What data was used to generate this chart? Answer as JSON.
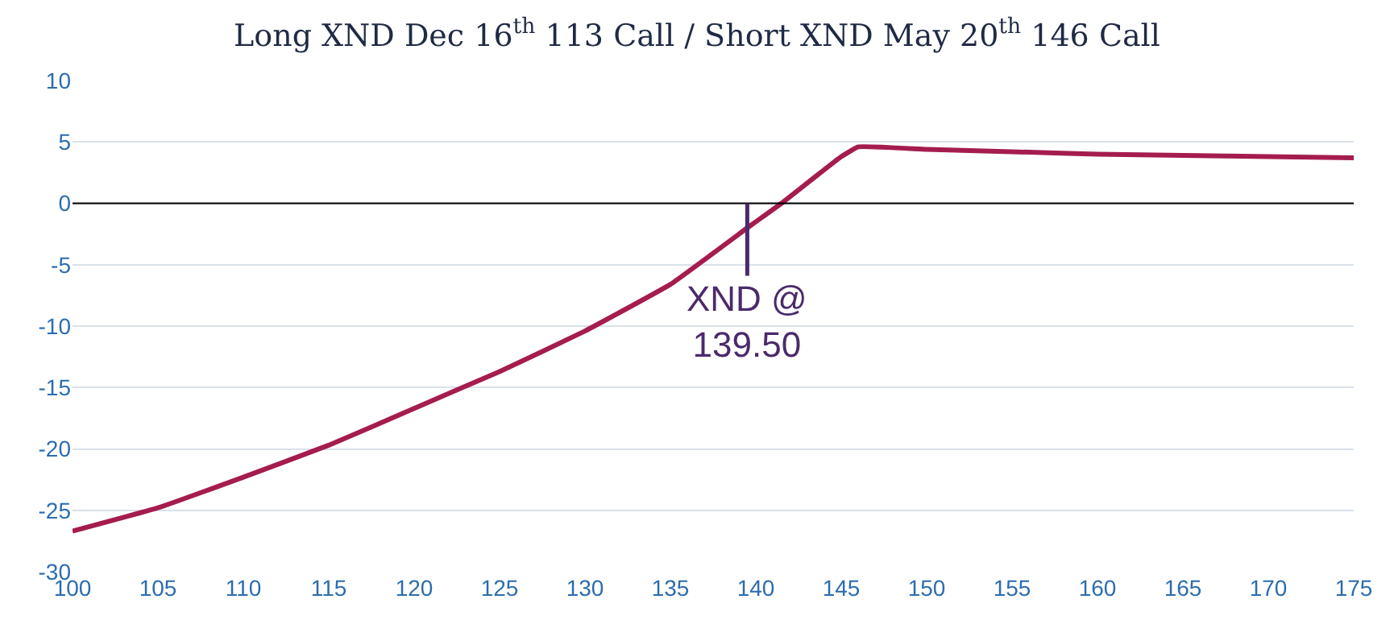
{
  "chart_data": {
    "type": "line",
    "title": "Long XND Dec 16$^{th}$ 113 Call / Short XND May 20$^{th}$ 146 Call",
    "x": [
      100,
      105,
      110,
      115,
      120,
      125,
      130,
      135,
      139.5,
      140,
      141.5,
      145,
      146,
      150,
      155,
      160,
      165,
      170,
      175
    ],
    "series": [
      {
        "color": "#a51c4f",
        "values": [
          -26.7,
          -24.8,
          -22.3,
          -19.7,
          -16.7,
          -13.7,
          -10.4,
          -6.6,
          -2.0,
          -1.5,
          0,
          3.8,
          4.6,
          4.4,
          4.2,
          4.0,
          3.9,
          3.8,
          3.7
        ]
      }
    ],
    "xlim": [
      100,
      175
    ],
    "xticks": [
      100,
      105,
      110,
      115,
      120,
      125,
      130,
      135,
      140,
      145,
      150,
      155,
      160,
      165,
      170,
      175
    ],
    "ylim": [
      -30,
      10
    ],
    "yticks": [
      -30,
      -25,
      -20,
      -15,
      -10,
      -5,
      0,
      5,
      10
    ],
    "grid": "y",
    "legend": false,
    "marker": "none",
    "line_style": "solid",
    "ref_lines": [
      {
        "axis": "y",
        "value": 0,
        "color": "#000000"
      }
    ],
    "annotations": [
      {
        "text": "XND @\n139.50",
        "x": 139.5,
        "y": 0
      }
    ]
  }
}
